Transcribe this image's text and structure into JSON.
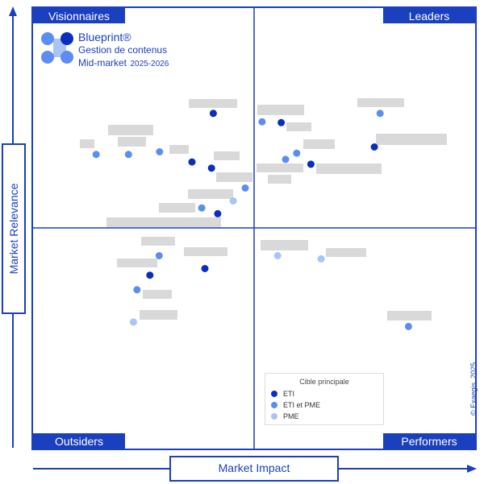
{
  "quadrants": {
    "top_left": "Visionnaires",
    "top_right": "Leaders",
    "bottom_left": "Outsiders",
    "bottom_right": "Performers"
  },
  "axes": {
    "x_label": "Market Impact",
    "y_label": "Market Relevance"
  },
  "logo": {
    "brand": "Blueprint®",
    "subtitle": "Gestion de contenus",
    "segment": "Mid-market",
    "years": "2025-2026"
  },
  "legend": {
    "title": "Cible principale",
    "items": [
      {
        "label": "ETI",
        "color": "#0a2fbf"
      },
      {
        "label": "ETI et PME",
        "color": "#5b8ef0"
      },
      {
        "label": "PME",
        "color": "#a9c4f5"
      }
    ]
  },
  "copyright": "© Exaegis, 2025",
  "colors": {
    "accent": "#1a3fbf",
    "ETI": "#0a2fbf",
    "ETI et PME": "#5b8ef0",
    "PME": "#a9c4f5",
    "redacted_label": "#d9d9d9"
  },
  "chart_data": {
    "type": "scatter",
    "xlabel": "Market Impact",
    "ylabel": "Market Relevance",
    "xlim": [
      0,
      1
    ],
    "ylim": [
      0,
      1
    ],
    "quadrant_split": [
      0.5,
      0.5
    ],
    "label_text_visible": false,
    "points": [
      {
        "x": 0.408,
        "y": 0.76,
        "cat": "ETI"
      },
      {
        "x": 0.518,
        "y": 0.741,
        "cat": "ETI et PME"
      },
      {
        "x": 0.561,
        "y": 0.739,
        "cat": "ETI"
      },
      {
        "x": 0.784,
        "y": 0.76,
        "cat": "ETI et PME"
      },
      {
        "x": 0.287,
        "y": 0.673,
        "cat": "ETI et PME"
      },
      {
        "x": 0.144,
        "y": 0.667,
        "cat": "ETI et PME"
      },
      {
        "x": 0.217,
        "y": 0.667,
        "cat": "ETI et PME"
      },
      {
        "x": 0.36,
        "y": 0.65,
        "cat": "ETI"
      },
      {
        "x": 0.404,
        "y": 0.636,
        "cat": "ETI"
      },
      {
        "x": 0.596,
        "y": 0.67,
        "cat": "ETI et PME"
      },
      {
        "x": 0.571,
        "y": 0.656,
        "cat": "ETI et PME"
      },
      {
        "x": 0.628,
        "y": 0.645,
        "cat": "ETI"
      },
      {
        "x": 0.771,
        "y": 0.684,
        "cat": "ETI"
      },
      {
        "x": 0.48,
        "y": 0.591,
        "cat": "ETI et PME"
      },
      {
        "x": 0.453,
        "y": 0.562,
        "cat": "PME"
      },
      {
        "x": 0.382,
        "y": 0.546,
        "cat": "ETI et PME"
      },
      {
        "x": 0.418,
        "y": 0.533,
        "cat": "ETI"
      },
      {
        "x": 0.286,
        "y": 0.438,
        "cat": "ETI et PME"
      },
      {
        "x": 0.389,
        "y": 0.409,
        "cat": "ETI"
      },
      {
        "x": 0.265,
        "y": 0.394,
        "cat": "ETI"
      },
      {
        "x": 0.236,
        "y": 0.361,
        "cat": "ETI et PME"
      },
      {
        "x": 0.228,
        "y": 0.288,
        "cat": "PME"
      },
      {
        "x": 0.553,
        "y": 0.438,
        "cat": "PME"
      },
      {
        "x": 0.651,
        "y": 0.431,
        "cat": "PME"
      },
      {
        "x": 0.848,
        "y": 0.278,
        "cat": "ETI et PME"
      }
    ]
  }
}
